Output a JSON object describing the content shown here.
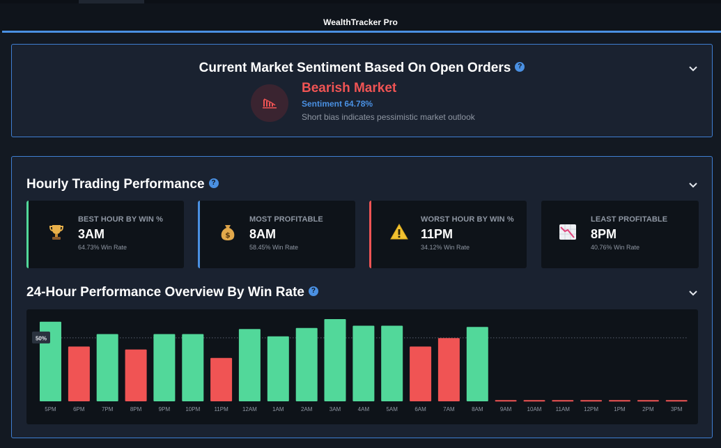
{
  "app": {
    "title": "WealthTracker Pro"
  },
  "sentiment": {
    "title": "Current Market Sentiment Based On Open Orders",
    "status": "Bearish Market",
    "value": "Sentiment 64.78%",
    "description": "Short bias indicates pessimistic market outlook",
    "status_color": "#f05454",
    "icon": "bear-chart-icon"
  },
  "hourly": {
    "title": "Hourly Trading Performance",
    "cards": [
      {
        "label": "BEST HOUR BY WIN %",
        "value": "3AM",
        "sub": "64.73% Win Rate",
        "accent": "#52d89a",
        "icon": "trophy-icon"
      },
      {
        "label": "MOST PROFITABLE",
        "value": "8AM",
        "sub": "58.45% Win Rate",
        "accent": "#4a90e2",
        "icon": "money-bag-icon"
      },
      {
        "label": "WORST HOUR BY WIN %",
        "value": "11PM",
        "sub": "34.12% Win Rate",
        "accent": "#f05454",
        "icon": "warning-icon"
      },
      {
        "label": "LEAST PROFITABLE",
        "value": "8PM",
        "sub": "40.76% Win Rate",
        "accent": "",
        "icon": "chart-down-icon"
      }
    ]
  },
  "overview": {
    "title": "24-Hour Performance Overview By Win Rate",
    "reference_label": "50%"
  },
  "chart_data": {
    "type": "bar",
    "title": "",
    "xlabel": "",
    "ylabel": "",
    "categories": [
      "5PM",
      "6PM",
      "7PM",
      "8PM",
      "9PM",
      "10PM",
      "11PM",
      "12AM",
      "1AM",
      "2AM",
      "3AM",
      "4AM",
      "5AM",
      "6AM",
      "7AM",
      "8AM",
      "9AM",
      "10AM",
      "11AM",
      "12PM",
      "1PM",
      "2PM",
      "3PM"
    ],
    "values": [
      62.7,
      43.1,
      52.9,
      40.8,
      52.9,
      52.9,
      34.1,
      56.9,
      51.1,
      57.7,
      64.7,
      59.5,
      59.5,
      43.1,
      49.8,
      58.5,
      1.0,
      1.0,
      1.0,
      1.0,
      1.0,
      1.0,
      1.0
    ],
    "colors": {
      "above": "#52d89a",
      "below": "#f05454"
    },
    "reference_line": 50,
    "ylim": [
      0,
      68
    ],
    "grid": false,
    "legend": "none"
  }
}
